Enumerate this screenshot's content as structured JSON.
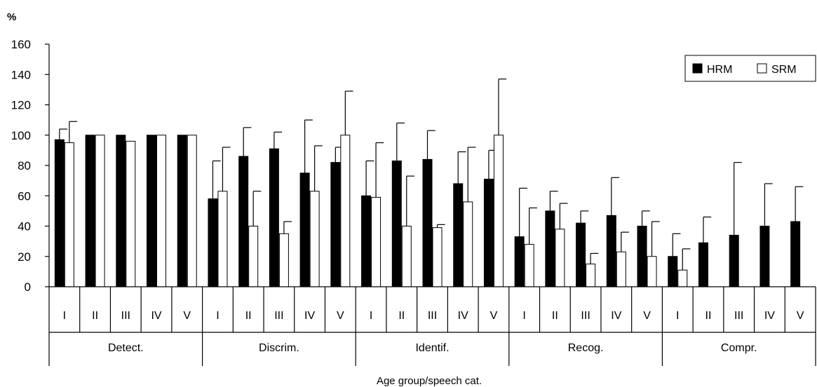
{
  "chart_data": {
    "type": "bar",
    "ylabel": "%",
    "xlabel": "Age group/speech cat.",
    "ylim": [
      0,
      160
    ],
    "yticks": [
      0,
      20,
      40,
      60,
      80,
      100,
      120,
      140,
      160
    ],
    "legend_position": "top-right",
    "speech_categories": [
      "Detect.",
      "Discrim.",
      "Identif.",
      "Recog.",
      "Compr."
    ],
    "age_groups": [
      "I",
      "II",
      "III",
      "IV",
      "V"
    ],
    "series": [
      {
        "name": "HRM",
        "color": "#000000",
        "values": [
          97,
          100,
          100,
          100,
          100,
          58,
          86,
          91,
          75,
          82,
          60,
          83,
          84,
          68,
          71,
          33,
          50,
          42,
          47,
          40,
          20,
          29,
          34,
          40,
          43
        ],
        "errors": [
          7,
          0,
          0,
          0,
          0,
          25,
          19,
          11,
          35,
          10,
          23,
          25,
          19,
          21,
          19,
          32,
          13,
          8,
          25,
          10,
          15,
          17,
          48,
          28,
          23
        ]
      },
      {
        "name": "SRM",
        "color": "#ffffff",
        "values": [
          95,
          100,
          96,
          100,
          100,
          63,
          40,
          35,
          63,
          100,
          59,
          40,
          39,
          56,
          100,
          28,
          38,
          15,
          23,
          20,
          11,
          0,
          0,
          0,
          0
        ],
        "errors": [
          14,
          0,
          0,
          0,
          0,
          29,
          23,
          8,
          30,
          29,
          36,
          33,
          2,
          36,
          37,
          24,
          17,
          7,
          13,
          23,
          14,
          0,
          0,
          0,
          0
        ]
      }
    ]
  }
}
